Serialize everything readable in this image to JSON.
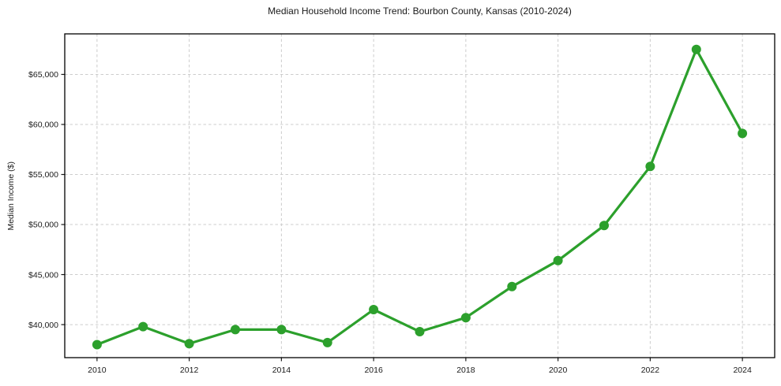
{
  "chart_data": {
    "type": "line",
    "title": "Median Household Income Trend: Bourbon County, Kansas (2010-2024)",
    "xlabel": "",
    "ylabel": "Median Income ($)",
    "series_name": "median-household-income",
    "x": [
      2010,
      2011,
      2012,
      2013,
      2014,
      2015,
      2016,
      2017,
      2018,
      2019,
      2020,
      2021,
      2022,
      2023,
      2024
    ],
    "values": [
      38000,
      39800,
      38100,
      39500,
      39500,
      38200,
      41500,
      39300,
      40700,
      43800,
      46400,
      49900,
      55800,
      67500,
      59100
    ],
    "xlim": [
      2009.3,
      2024.7
    ],
    "ylim": [
      36700,
      69050
    ],
    "xticks": {
      "values": [
        2010,
        2012,
        2014,
        2016,
        2018,
        2020,
        2022,
        2024
      ],
      "labels": [
        "2010",
        "2012",
        "2014",
        "2016",
        "2018",
        "2020",
        "2022",
        "2024"
      ]
    },
    "yticks": {
      "values": [
        40000,
        45000,
        50000,
        55000,
        60000,
        65000
      ],
      "labels": [
        "$40,000",
        "$45,000",
        "$50,000",
        "$55,000",
        "$60,000",
        "$65,000"
      ]
    },
    "grid": true,
    "legend_position": "none",
    "style": {
      "line_color": "#2ca02c",
      "line_width": 3.2,
      "marker": "circle",
      "marker_radius": 6,
      "grid_color": "#cccccc",
      "grid_dash": "3.5 3",
      "spine_color": "#000000",
      "spine_width": 1.3,
      "tick_color": "#1a1a1a",
      "tick_length": 4.5,
      "background": "#ffffff"
    }
  }
}
